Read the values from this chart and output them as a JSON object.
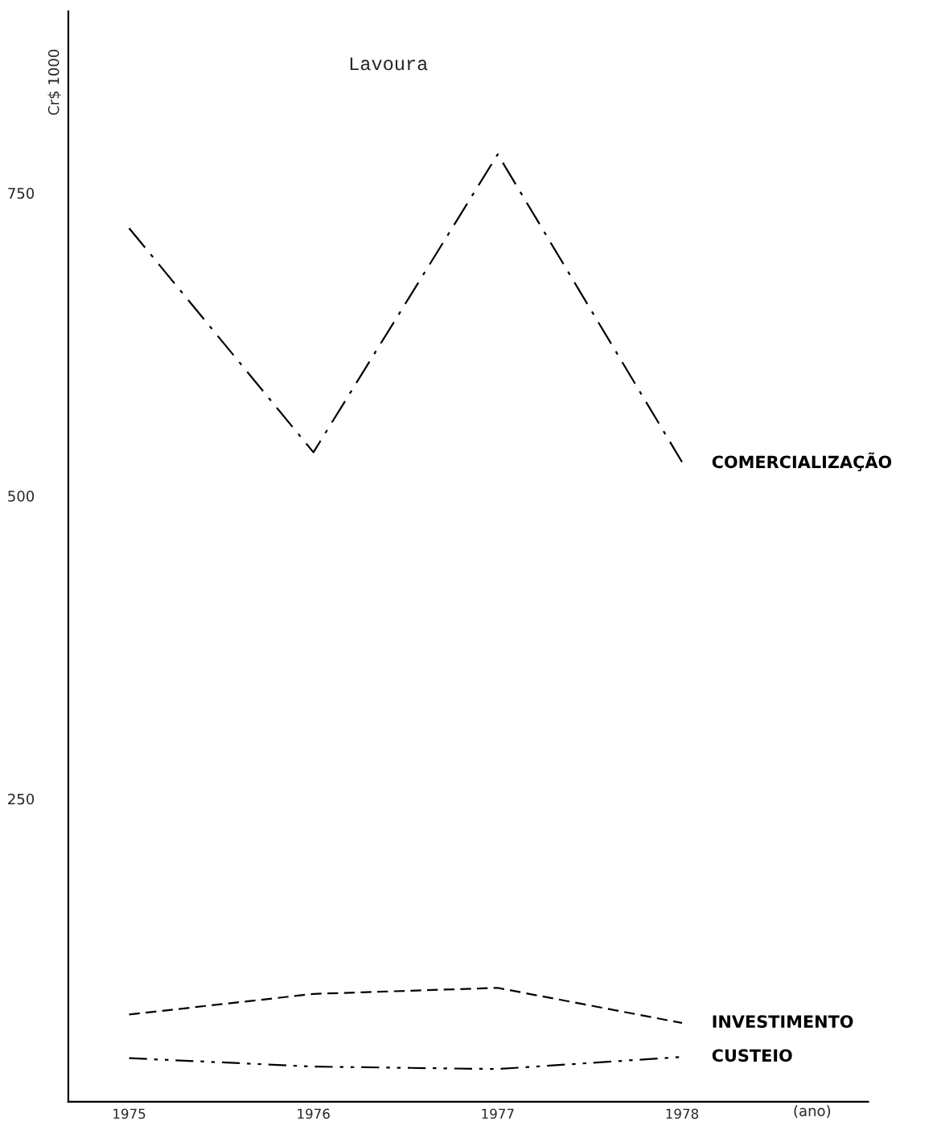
{
  "chart_data": {
    "type": "line",
    "title": "Lavoura",
    "ylabel": "Cr$ 1000",
    "xlabel": "(ano)",
    "categories": [
      "1975",
      "1976",
      "1977",
      "1978"
    ],
    "series": [
      {
        "name": "COMERCIALIZAÇÃO",
        "color": "#000000",
        "line_style": "dashdot",
        "values": [
          721,
          536,
          782,
          528
        ]
      },
      {
        "name": "INVESTIMENTO",
        "color": "#000000",
        "line_style": "dashed",
        "values": [
          72,
          89,
          94,
          65
        ]
      },
      {
        "name": "CUSTEIO",
        "color": "#000000",
        "line_style": "dashdotdot",
        "values": [
          36,
          29,
          27,
          37
        ]
      }
    ],
    "ylim": [
      0,
      900
    ],
    "yticks": [
      250,
      500,
      750
    ],
    "grid": false,
    "legend": false,
    "marker": "none"
  }
}
